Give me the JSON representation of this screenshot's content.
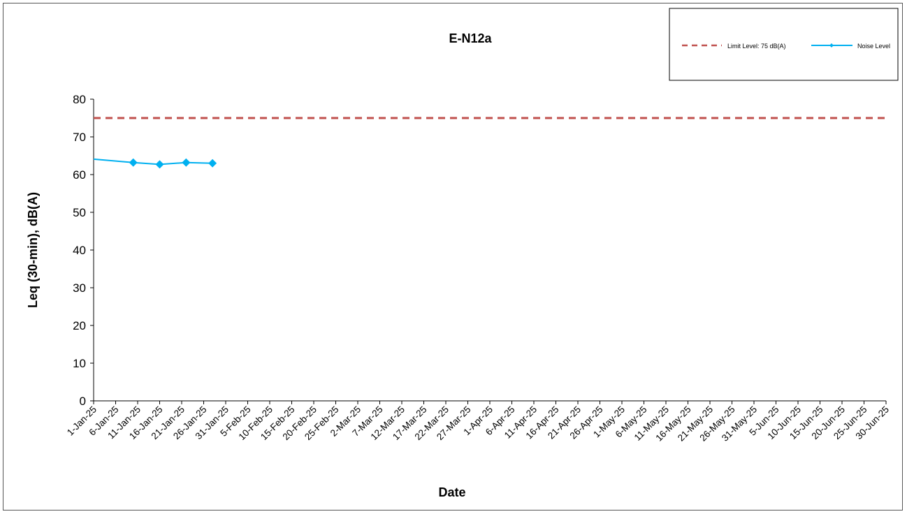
{
  "chart_data": {
    "type": "line",
    "title": "E-N12a",
    "xlabel": "Date",
    "ylabel": "Leq (30-min), dB(A)",
    "ylim": [
      0,
      80
    ],
    "yticks": [
      0,
      10,
      20,
      30,
      40,
      50,
      60,
      70,
      80
    ],
    "xlim": [
      "2025-01-01",
      "2025-06-30"
    ],
    "xtick_labels": [
      "1-Jan-25",
      "6-Jan-25",
      "11-Jan-25",
      "16-Jan-25",
      "21-Jan-25",
      "26-Jan-25",
      "31-Jan-25",
      "5-Feb-25",
      "10-Feb-25",
      "15-Feb-25",
      "20-Feb-25",
      "25-Feb-25",
      "2-Mar-25",
      "7-Mar-25",
      "12-Mar-25",
      "17-Mar-25",
      "22-Mar-25",
      "27-Mar-25",
      "1-Apr-25",
      "6-Apr-25",
      "11-Apr-25",
      "16-Apr-25",
      "21-Apr-25",
      "26-Apr-25",
      "1-May-25",
      "6-May-25",
      "11-May-25",
      "16-May-25",
      "21-May-25",
      "26-May-25",
      "31-May-25",
      "5-Jun-25",
      "10-Jun-25",
      "15-Jun-25",
      "20-Jun-25",
      "25-Jun-25",
      "30-Jun-25"
    ],
    "grid": false,
    "legend_position": "top-right",
    "series": [
      {
        "name": "Limit Level: 75 dB(A)",
        "style": "dashed",
        "color": "#c0504d",
        "markers": false,
        "points": [
          {
            "x": "2025-01-01",
            "y": 75
          },
          {
            "x": "2025-06-30",
            "y": 75
          }
        ]
      },
      {
        "name": "Noise Level",
        "style": "solid",
        "color": "#00b0f0",
        "markers": true,
        "points": [
          {
            "x": "2024-12-31",
            "y": 64.1
          },
          {
            "x": "2025-01-10",
            "y": 63.2
          },
          {
            "x": "2025-01-16",
            "y": 62.7
          },
          {
            "x": "2025-01-22",
            "y": 63.2
          },
          {
            "x": "2025-01-28",
            "y": 63.0
          }
        ]
      }
    ]
  }
}
